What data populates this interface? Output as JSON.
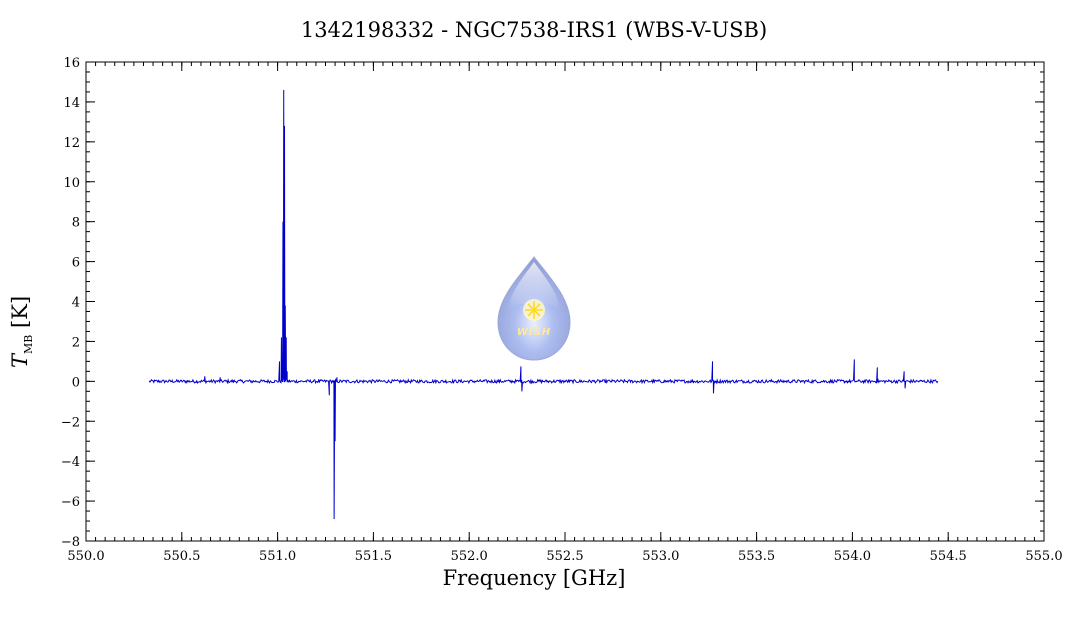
{
  "chart_data": {
    "type": "line",
    "title": "1342198332 - NGC7538-IRS1 (WBS-V-USB)",
    "xlabel": "Frequency [GHz]",
    "ylabel_main": "T",
    "ylabel_sub": "MB",
    "ylabel_unit": "[K]",
    "xlim": [
      550.0,
      555.0
    ],
    "ylim": [
      -8,
      16
    ],
    "x_ticks": [
      550.0,
      550.5,
      551.0,
      551.5,
      552.0,
      552.5,
      553.0,
      553.5,
      554.0,
      554.5,
      555.0
    ],
    "x_tick_labels": [
      "550.0",
      "550.5",
      "551.0",
      "551.5",
      "552.0",
      "552.5",
      "553.0",
      "553.5",
      "554.0",
      "554.5",
      "555.0"
    ],
    "y_ticks": [
      -8,
      -6,
      -4,
      -2,
      0,
      2,
      4,
      6,
      8,
      10,
      12,
      14,
      16
    ],
    "y_tick_labels": [
      "−8",
      "−6",
      "−4",
      "−2",
      "0",
      "2",
      "4",
      "6",
      "8",
      "10",
      "12",
      "14",
      "16"
    ],
    "grid": false,
    "series_color": "#0000cc",
    "series": [
      {
        "x_range": [
          550.33,
          554.45
        ],
        "baseline": 0.0,
        "features": [
          {
            "x": 550.62,
            "y": 0.25
          },
          {
            "x": 550.7,
            "y": 0.2
          },
          {
            "x": 551.01,
            "y": 1.0
          },
          {
            "x": 551.02,
            "y": 2.2
          },
          {
            "x": 551.028,
            "y": 8.0
          },
          {
            "x": 551.032,
            "y": 14.6
          },
          {
            "x": 551.036,
            "y": 12.8
          },
          {
            "x": 551.04,
            "y": 3.8
          },
          {
            "x": 551.045,
            "y": 2.2
          },
          {
            "x": 551.05,
            "y": 0.5
          },
          {
            "x": 551.27,
            "y": -0.7
          },
          {
            "x": 551.295,
            "y": -6.9
          },
          {
            "x": 551.3,
            "y": -3.0
          },
          {
            "x": 551.31,
            "y": 0.2
          },
          {
            "x": 552.27,
            "y": 0.75
          },
          {
            "x": 552.275,
            "y": -0.5
          },
          {
            "x": 553.27,
            "y": 1.0
          },
          {
            "x": 553.275,
            "y": -0.6
          },
          {
            "x": 554.01,
            "y": 1.1
          },
          {
            "x": 554.13,
            "y": 0.7
          },
          {
            "x": 554.27,
            "y": 0.5
          },
          {
            "x": 554.275,
            "y": -0.35
          }
        ]
      }
    ]
  },
  "watermark": {
    "label": "WISH",
    "logo_color": "#8fa6e6"
  }
}
